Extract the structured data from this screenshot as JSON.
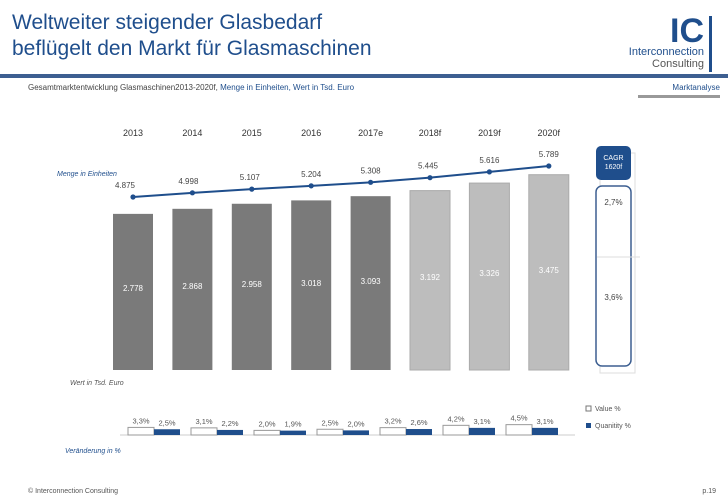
{
  "header": {
    "title_line1": "Weltweiter steigender Glasbedarf",
    "title_line2": "beflügelt den Markt für Glasmaschinen",
    "subtitle_plain": "Gesamtmarktentwicklung Glasmaschinen2013-2020f, ",
    "subtitle_bold": "Menge in Einheiten, Wert in Tsd. Euro",
    "section_tag": "Marktanalyse"
  },
  "logo": {
    "mark": "IC",
    "line1": "Interconnection",
    "line2": "Consulting"
  },
  "footer": {
    "copyright": "© Interconnection Consulting",
    "page": "p.19"
  },
  "colors": {
    "brand": "#1f4e8c",
    "bar_actual": "#7a7a7a",
    "bar_forecast": "#bdbdbd"
  },
  "chart_data": {
    "type": "bar",
    "categories": [
      "2013",
      "2014",
      "2015",
      "2016",
      "2017e",
      "2018f",
      "2019f",
      "2020f"
    ],
    "value_series": {
      "label": "Wert in Tsd. Euro",
      "values": [
        2778,
        2868,
        2958,
        3018,
        3093,
        3192,
        3326,
        3475
      ],
      "labels": [
        "2.778",
        "2.868",
        "2.958",
        "3.018",
        "3.093",
        "3.192",
        "3.326",
        "3.475"
      ]
    },
    "quantity_series": {
      "type": "line",
      "label": "Menge in Einheiten",
      "values": [
        4875,
        4998,
        5107,
        5204,
        5308,
        5445,
        5616,
        5789
      ],
      "labels": [
        "4.875",
        "4.998",
        "5.107",
        "5.204",
        "5.308",
        "5.445",
        "5.616",
        "5.789"
      ]
    },
    "cagr": {
      "title_line1": "CAGR",
      "title_line2": "1620f",
      "quantity": "2,7%",
      "value": "3,6%"
    },
    "change": {
      "label": "Veränderung in %",
      "legend": [
        {
          "name": "Value %"
        },
        {
          "name": "Quanitity %"
        }
      ],
      "value_pct": [
        3.3,
        3.1,
        2.0,
        2.5,
        3.2,
        4.2,
        4.5
      ],
      "quantity_pct": [
        2.5,
        2.2,
        1.9,
        2.0,
        2.6,
        3.1,
        3.1
      ],
      "value_labels": [
        "3,3%",
        "3,1%",
        "2,0%",
        "2,5%",
        "3,2%",
        "4,2%",
        "4,5%"
      ],
      "quantity_labels": [
        "2,5%",
        "2,2%",
        "1,9%",
        "2,0%",
        "2,6%",
        "3,1%",
        "3,1%"
      ]
    }
  }
}
